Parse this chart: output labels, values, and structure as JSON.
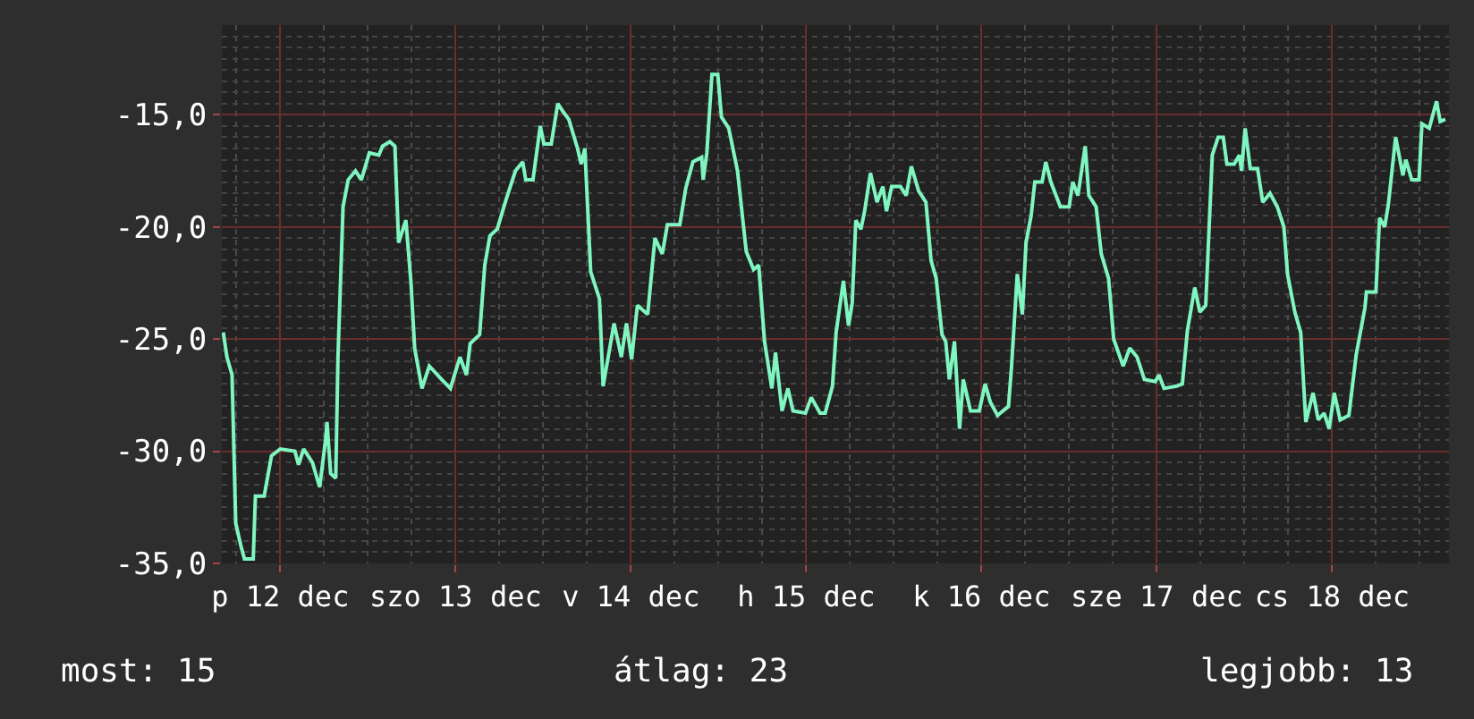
{
  "chart_data": {
    "type": "line",
    "color": "#7ff5c0",
    "xlim": [
      "--12-12T04:00",
      "--12-19T04:00"
    ],
    "ylim": [
      -35,
      -11
    ],
    "xticks": [
      {
        "value": "--12-12T12:00",
        "label": "p 12 dec"
      },
      {
        "value": "--12-13T12:00",
        "label": "szo 13 dec"
      },
      {
        "value": "--12-14T12:00",
        "label": "v 14 dec"
      },
      {
        "value": "--12-15T12:00",
        "label": "h 15 dec"
      },
      {
        "value": "--12-16T12:00",
        "label": "k 16 dec"
      },
      {
        "value": "--12-17T12:00",
        "label": "sze 17 dec"
      },
      {
        "value": "--12-18T12:00",
        "label": "cs 18 dec"
      }
    ],
    "yticks": [
      {
        "value": -35,
        "label": "-35,0"
      },
      {
        "value": -30,
        "label": "-30,0"
      },
      {
        "value": -25,
        "label": "-25,0"
      },
      {
        "value": -20,
        "label": "-20,0"
      },
      {
        "value": -15,
        "label": "-15,0"
      }
    ],
    "grid": true,
    "marker": "none",
    "line_style": "solid",
    "annotations": [
      "most: 15",
      "átlag: 23",
      "legjobb: 13"
    ],
    "x": [
      "--12-12T04:12",
      "--12-12T04:42",
      "--12-12T05:24",
      "--12-12T05:54",
      "--12-12T06:36",
      "--12-12T07:06",
      "--12-12T08:18",
      "--12-12T08:36",
      "--12-12T09:48",
      "--12-12T10:48",
      "--12-12T12:00",
      "--12-12T14:00",
      "--12-12T14:30",
      "--12-12T15:12",
      "--12-12T16:24",
      "--12-12T17:24",
      "--12-12T18:12",
      "--12-12T18:24",
      "--12-12T18:54",
      "--12-12T19:36",
      "--12-12T19:54",
      "--12-12T20:36",
      "--12-12T21:18",
      "--12-12T22:18",
      "--12-12T23:06",
      "--12-13T00:12",
      "--12-13T01:30",
      "--12-13T02:00",
      "--12-13T03:00",
      "--12-13T03:42",
      "--12-13T04:12",
      "--12-13T05:12",
      "--12-13T05:54",
      "--12-13T06:24",
      "--12-13T07:24",
      "--12-13T08:24",
      "--12-13T10:06",
      "--12-13T11:18",
      "--12-13T12:36",
      "--12-13T13:30",
      "--12-13T14:00",
      "--12-13T15:18",
      "--12-13T16:00",
      "--12-13T16:42",
      "--12-13T17:42",
      "--12-13T18:54",
      "--12-13T20:12",
      "--12-13T21:12",
      "--12-13T21:36",
      "--12-13T22:36",
      "--12-13T23:36",
      "--12-14T00:06",
      "--12-14T01:06",
      "--12-14T02:00",
      "--12-14T02:48",
      "--12-14T03:30",
      "--12-14T04:42",
      "--12-14T05:12",
      "--12-14T05:42",
      "--12-14T06:30",
      "--12-14T07:42",
      "--12-14T08:12",
      "--12-14T09:42",
      "--12-14T10:42",
      "--12-14T11:24",
      "--12-14T12:06",
      "--12-14T12:54",
      "--12-14T14:18",
      "--12-14T15:18",
      "--12-14T16:18",
      "--12-14T17:00",
      "--12-14T18:42",
      "--12-14T19:30",
      "--12-14T20:30",
      "--12-14T21:42",
      "--12-14T21:54",
      "--12-14T22:24",
      "--12-14T23:06",
      "--12-14T23:54",
      "--12-15T00:24",
      "--12-15T01:24",
      "--12-15T02:36",
      "--12-15T03:48",
      "--12-15T04:48",
      "--12-15T05:30",
      "--12-15T06:18",
      "--12-15T07:18",
      "--12-15T07:48",
      "--12-15T08:42",
      "--12-15T09:30",
      "--12-15T10:12",
      "--12-15T11:54",
      "--12-15T12:42",
      "--12-15T13:54",
      "--12-15T14:36",
      "--12-15T15:36",
      "--12-15T16:06",
      "--12-15T17:06",
      "--12-15T17:48",
      "--12-15T18:18",
      "--12-15T18:48",
      "--12-15T19:30",
      "--12-15T20:00",
      "--12-15T20:48",
      "--12-15T21:42",
      "--12-15T22:30",
      "--12-15T23:00",
      "--12-15T23:42",
      "--12-16T00:54",
      "--12-16T01:42",
      "--12-16T02:24",
      "--12-16T03:24",
      "--12-16T04:24",
      "--12-16T05:06",
      "--12-16T05:48",
      "--12-16T06:36",
      "--12-16T07:06",
      "--12-16T07:36",
      "--12-16T08:18",
      "--12-16T09:00",
      "--12-16T09:30",
      "--12-16T10:30",
      "--12-16T11:42",
      "--12-16T12:30",
      "--12-16T13:12",
      "--12-16T14:12",
      "--12-16T15:42",
      "--12-16T16:06",
      "--12-16T16:54",
      "--12-16T17:36",
      "--12-16T18:06",
      "--12-16T18:48",
      "--12-16T19:18",
      "--12-16T20:18",
      "--12-16T20:48",
      "--12-16T21:30",
      "--12-16T22:48",
      "--12-17T00:00",
      "--12-17T00:30",
      "--12-17T01:12",
      "--12-17T02:12",
      "--12-17T02:42",
      "--12-17T03:42",
      "--12-17T04:24",
      "--12-17T05:24",
      "--12-17T06:06",
      "--12-17T07:24",
      "--12-17T08:18",
      "--12-17T09:18",
      "--12-17T10:18",
      "--12-17T11:48",
      "--12-17T12:18",
      "--12-17T13:00",
      "--12-17T14:42",
      "--12-17T15:30",
      "--12-17T16:12",
      "--12-17T17:12",
      "--12-17T17:54",
      "--12-17T18:42",
      "--12-17T19:36",
      "--12-17T20:24",
      "--12-17T21:06",
      "--12-17T21:36",
      "--12-17T22:36",
      "--12-17T23:18",
      "--12-17T23:36",
      "--12-18T00:06",
      "--12-18T00:48",
      "--12-18T01:48",
      "--12-18T02:30",
      "--12-18T03:30",
      "--12-18T04:30",
      "--12-18T05:24",
      "--12-18T05:54",
      "--12-18T06:54",
      "--12-18T07:42",
      "--12-18T08:24",
      "--12-18T09:24",
      "--12-18T10:06",
      "--12-18T10:54",
      "--12-18T11:36",
      "--12-18T12:18",
      "--12-18T13:06",
      "--12-18T14:18",
      "--12-18T15:18",
      "--12-18T16:30",
      "--12-18T16:42",
      "--12-18T18:00",
      "--12-18T18:30",
      "--12-18T19:12",
      "--12-18T19:42",
      "--12-18T20:42",
      "--12-18T21:42",
      "--12-18T22:06",
      "--12-18T22:54",
      "--12-18T23:54",
      "--12-19T00:18",
      "--12-19T01:18",
      "--12-19T02:18",
      "--12-19T02:48",
      "--12-19T03:30"
    ],
    "values": [
      -24.7,
      -25.8,
      -26.6,
      -33.2,
      -34.2,
      -34.8,
      -34.8,
      -32.0,
      -32.0,
      -30.2,
      -29.9,
      -30.0,
      -30.6,
      -29.9,
      -30.5,
      -31.6,
      -29.5,
      -28.7,
      -31.0,
      -31.2,
      -25.8,
      -19.1,
      -17.9,
      -17.5,
      -17.9,
      -16.7,
      -16.8,
      -16.4,
      -16.2,
      -16.4,
      -20.7,
      -19.7,
      -22.5,
      -25.4,
      -27.2,
      -26.2,
      -26.8,
      -27.2,
      -25.8,
      -26.6,
      -25.2,
      -24.8,
      -21.7,
      -20.4,
      -20.1,
      -18.8,
      -17.5,
      -17.1,
      -17.9,
      -17.9,
      -15.5,
      -16.3,
      -16.3,
      -14.5,
      -14.9,
      -15.2,
      -16.5,
      -17.2,
      -16.5,
      -22.0,
      -23.2,
      -27.1,
      -24.3,
      -25.8,
      -24.3,
      -25.9,
      -23.5,
      -23.9,
      -20.5,
      -21.2,
      -19.9,
      -19.9,
      -18.3,
      -17.1,
      -16.9,
      -17.9,
      -16.7,
      -13.2,
      -13.2,
      -15.1,
      -15.6,
      -17.5,
      -21.1,
      -21.9,
      -21.7,
      -25.1,
      -27.2,
      -25.6,
      -28.2,
      -27.2,
      -28.2,
      -28.3,
      -27.6,
      -28.3,
      -28.3,
      -27.1,
      -24.7,
      -22.4,
      -24.4,
      -23.4,
      -19.7,
      -20.1,
      -19.3,
      -17.6,
      -18.9,
      -18.2,
      -19.3,
      -18.2,
      -18.2,
      -18.6,
      -17.3,
      -18.4,
      -18.9,
      -21.5,
      -22.3,
      -24.8,
      -25.1,
      -26.8,
      -25.1,
      -29.0,
      -26.8,
      -28.2,
      -28.2,
      -27.0,
      -27.8,
      -28.4,
      -28.0,
      -26.3,
      -22.1,
      -23.9,
      -20.7,
      -19.5,
      -18.0,
      -18.0,
      -17.1,
      -18.0,
      -19.1,
      -19.1,
      -18.0,
      -18.6,
      -16.4,
      -18.6,
      -19.1,
      -21.2,
      -22.3,
      -25.0,
      -26.2,
      -25.4,
      -25.8,
      -26.8,
      -26.9,
      -26.6,
      -27.2,
      -27.1,
      -27.0,
      -24.6,
      -22.7,
      -23.8,
      -23.5,
      -16.8,
      -16.0,
      -16.0,
      -17.2,
      -17.2,
      -16.8,
      -17.5,
      -15.6,
      -17.4,
      -17.4,
      -18.9,
      -18.5,
      -19.1,
      -20.0,
      -22.1,
      -23.8,
      -24.7,
      -28.7,
      -27.4,
      -28.6,
      -28.3,
      -29.0,
      -27.4,
      -28.6,
      -28.4,
      -25.7,
      -23.6,
      -22.9,
      -22.9,
      -19.6,
      -20.0,
      -19.0,
      -16.0,
      -17.7,
      -17.0,
      -17.9,
      -17.9,
      -15.4,
      -15.6,
      -14.4,
      -15.3,
      -15.2
    ]
  }
}
